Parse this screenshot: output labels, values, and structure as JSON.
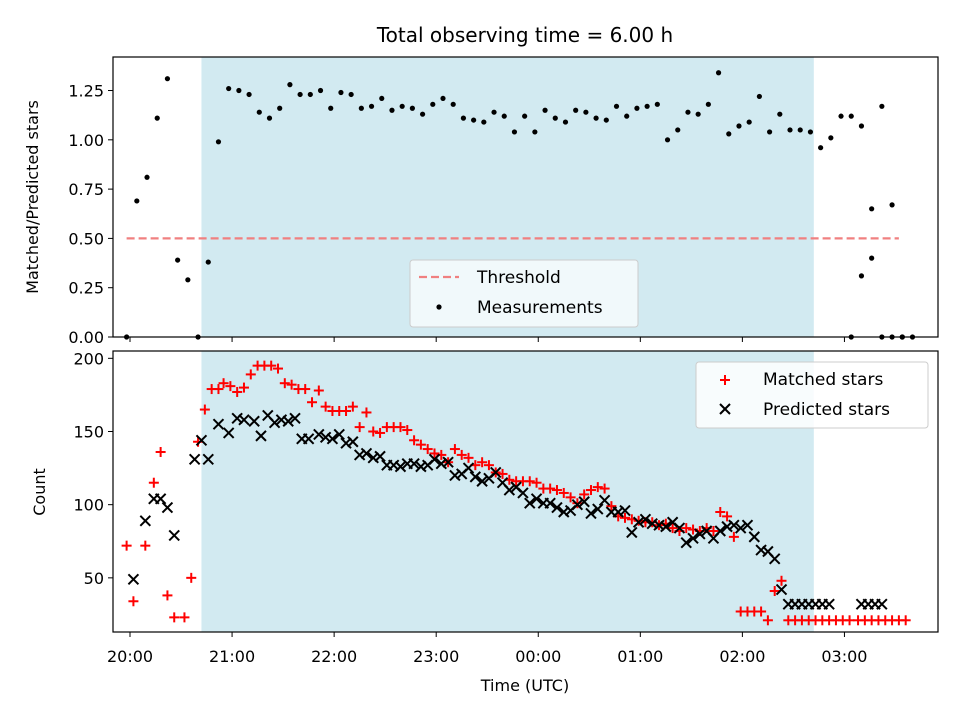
{
  "figure": {
    "title": "Total observing time = 6.00 h"
  },
  "colors": {
    "span": "#add8e6",
    "threshold": "#f08080",
    "matched": "#ff0000",
    "predicted": "#000000",
    "measurement": "#000000"
  },
  "chart_data": [
    {
      "type": "scatter",
      "title": "Total observing time = 6.00 h",
      "xlabel": "",
      "ylabel": "Matched/Predicted stars",
      "xlim": [
        "19:50",
        "03:55"
      ],
      "ylim": [
        0,
        1.42
      ],
      "yticks": [
        0.0,
        0.25,
        0.5,
        0.75,
        1.0,
        1.25
      ],
      "ytick_labels": [
        "0.00",
        "0.25",
        "0.50",
        "0.75",
        "1.00",
        "1.25"
      ],
      "shaded_span": [
        "20:42",
        "02:42"
      ],
      "legend": {
        "placement": "lower center",
        "entries": [
          "Threshold",
          "Measurements"
        ]
      },
      "threshold": {
        "name": "Threshold",
        "y": 0.5,
        "x_from": "19:58",
        "x_to": "03:32",
        "style": "dashed"
      },
      "series": [
        {
          "name": "Measurements",
          "x": [
            "19:58",
            "20:04",
            "20:10",
            "20:16",
            "20:22",
            "20:28",
            "20:34",
            "20:40",
            "20:46",
            "20:52",
            "20:58",
            "21:04",
            "21:10",
            "21:16",
            "21:22",
            "21:28",
            "21:34",
            "21:40",
            "21:46",
            "21:52",
            "21:58",
            "22:04",
            "22:10",
            "22:16",
            "22:22",
            "22:28",
            "22:34",
            "22:40",
            "22:46",
            "22:52",
            "22:58",
            "23:04",
            "23:10",
            "23:16",
            "23:22",
            "23:28",
            "23:34",
            "23:40",
            "23:46",
            "23:52",
            "23:58",
            "00:04",
            "00:10",
            "00:16",
            "00:22",
            "00:28",
            "00:34",
            "00:40",
            "00:46",
            "00:52",
            "00:58",
            "01:04",
            "01:10",
            "01:16",
            "01:22",
            "01:28",
            "01:34",
            "01:40",
            "01:46",
            "01:52",
            "01:58",
            "02:04",
            "02:10",
            "02:16",
            "02:22",
            "02:28",
            "02:34",
            "02:40",
            "02:46",
            "02:52",
            "02:58",
            "03:04",
            "03:10",
            "03:16",
            "03:22",
            "03:28",
            "03:34"
          ],
          "y": [
            0.0,
            0.69,
            0.81,
            1.11,
            1.31,
            0.39,
            0.29,
            0.0,
            0.38,
            0.99,
            1.26,
            1.25,
            1.23,
            1.14,
            1.11,
            1.16,
            1.28,
            1.23,
            1.23,
            1.25,
            1.16,
            1.24,
            1.23,
            1.16,
            1.17,
            1.21,
            1.15,
            1.17,
            1.16,
            1.13,
            1.18,
            1.21,
            1.18,
            1.11,
            1.1,
            1.09,
            1.14,
            1.12,
            1.04,
            1.12,
            1.04,
            1.15,
            1.11,
            1.09,
            1.15,
            1.14,
            1.11,
            1.1,
            1.17,
            1.12,
            1.16,
            1.17,
            1.18,
            1.0,
            1.05,
            1.14,
            1.13,
            1.18,
            1.34,
            1.03,
            1.07,
            1.09,
            1.22,
            1.04,
            1.13,
            1.05,
            1.05,
            1.04,
            0.96,
            1.01,
            1.12,
            1.12,
            1.07,
            0.4,
            0.0,
            0.0,
            0.0
          ]
        },
        {
          "name": "Measurements",
          "x": [
            "03:04",
            "03:10",
            "03:16",
            "03:22",
            "03:28",
            "03:34",
            "03:40"
          ],
          "y": [
            0.0,
            0.31,
            0.65,
            1.17,
            0.67,
            0.0,
            0.0
          ]
        }
      ]
    },
    {
      "type": "scatter",
      "title": "",
      "xlabel": "Time (UTC)",
      "ylabel": "Count",
      "xlim": [
        "19:50",
        "03:55"
      ],
      "ylim": [
        13,
        205
      ],
      "yticks": [
        50,
        100,
        150,
        200
      ],
      "ytick_labels": [
        "50",
        "100",
        "150",
        "200"
      ],
      "xtick_labels": [
        "20:00",
        "21:00",
        "22:00",
        "23:00",
        "00:00",
        "01:00",
        "02:00",
        "03:00"
      ],
      "shaded_span": [
        "20:42",
        "02:42"
      ],
      "legend": {
        "placement": "upper right",
        "entries": [
          "Matched stars",
          "Predicted stars"
        ]
      },
      "series": [
        {
          "name": "Matched stars",
          "marker": "+",
          "x": [
            "19:58",
            "20:02",
            "20:09",
            "20:14",
            "20:18",
            "20:22",
            "20:26",
            "20:32",
            "20:36",
            "20:40",
            "20:44",
            "20:48",
            "20:52",
            "20:55",
            "20:59",
            "21:03",
            "21:07",
            "21:11",
            "21:15",
            "21:19",
            "21:23",
            "21:27",
            "21:31",
            "21:35",
            "21:39",
            "21:43",
            "21:47",
            "21:51",
            "21:55",
            "21:59",
            "22:03",
            "22:07",
            "22:11",
            "22:15",
            "22:19",
            "22:23",
            "22:27",
            "22:31",
            "22:35",
            "22:39",
            "22:43",
            "22:47",
            "22:51",
            "22:55",
            "22:59",
            "23:03",
            "23:07",
            "23:11",
            "23:15",
            "23:19",
            "23:23",
            "23:27",
            "23:31",
            "23:35",
            "23:39",
            "23:43",
            "23:47",
            "23:51",
            "23:55",
            "23:59",
            "00:03",
            "00:07",
            "00:11",
            "00:15",
            "00:19",
            "00:23",
            "00:27",
            "00:31",
            "00:35",
            "00:39",
            "00:43",
            "00:47",
            "00:51",
            "00:55",
            "00:59",
            "01:03",
            "01:07",
            "01:11",
            "01:15",
            "01:19",
            "01:23",
            "01:27",
            "01:31",
            "01:35",
            "01:39",
            "01:43",
            "01:47",
            "01:51",
            "01:55",
            "01:59",
            "02:03",
            "02:07",
            "02:11",
            "02:15",
            "02:19",
            "02:23",
            "02:27",
            "02:31",
            "02:35",
            "02:39",
            "02:43",
            "02:47",
            "02:51",
            "02:55",
            "02:59",
            "03:03",
            "03:08",
            "03:12",
            "03:16",
            "03:20",
            "03:24",
            "03:28",
            "03:32",
            "03:36"
          ],
          "y": [
            72,
            34,
            72,
            115,
            136,
            38,
            23,
            23,
            50,
            143,
            165,
            179,
            179,
            183,
            181,
            177,
            180,
            189,
            195,
            195,
            195,
            193,
            183,
            182,
            179,
            179,
            170,
            178,
            167,
            164,
            164,
            164,
            167,
            153,
            163,
            150,
            149,
            153,
            153,
            153,
            151,
            144,
            141,
            138,
            135,
            134,
            129,
            138,
            134,
            132,
            127,
            129,
            127,
            122,
            121,
            117,
            116,
            116,
            116,
            115,
            111,
            111,
            110,
            108,
            105,
            101,
            107,
            110,
            112,
            111,
            99,
            92,
            91,
            90,
            89,
            88,
            88,
            86,
            87,
            84,
            82,
            84,
            83,
            82,
            84,
            82,
            95,
            92,
            78,
            27,
            27,
            27,
            27,
            21,
            41,
            48,
            21,
            21,
            21,
            21,
            21,
            21,
            21,
            21,
            21,
            21,
            21,
            21,
            21,
            21,
            21,
            21,
            21,
            21
          ],
          "x_note": ""
        },
        {
          "name": "Predicted stars",
          "marker": "x",
          "x": [
            "20:02",
            "20:09",
            "20:14",
            "20:18",
            "20:22",
            "20:26",
            "20:38",
            "20:42",
            "20:46",
            "20:52",
            "20:58",
            "21:03",
            "21:07",
            "21:13",
            "21:17",
            "21:21",
            "21:25",
            "21:29",
            "21:33",
            "21:37",
            "21:41",
            "21:45",
            "21:51",
            "21:55",
            "21:59",
            "22:03",
            "22:07",
            "22:11",
            "22:15",
            "22:19",
            "22:23",
            "22:27",
            "22:31",
            "22:35",
            "22:39",
            "22:43",
            "22:47",
            "22:51",
            "22:55",
            "22:59",
            "23:03",
            "23:07",
            "23:11",
            "23:15",
            "23:19",
            "23:23",
            "23:27",
            "23:31",
            "23:35",
            "23:39",
            "23:43",
            "23:47",
            "23:51",
            "23:55",
            "23:59",
            "00:03",
            "00:07",
            "00:11",
            "00:15",
            "00:19",
            "00:23",
            "00:27",
            "00:31",
            "00:35",
            "00:39",
            "00:43",
            "00:47",
            "00:51",
            "00:55",
            "00:59",
            "01:03",
            "01:07",
            "01:11",
            "01:15",
            "01:19",
            "01:23",
            "01:27",
            "01:31",
            "01:35",
            "01:39",
            "01:43",
            "01:47",
            "01:51",
            "01:55",
            "01:59",
            "02:03",
            "02:07",
            "02:11",
            "02:15",
            "02:19",
            "02:23",
            "02:27",
            "02:31",
            "02:35",
            "02:39",
            "02:43",
            "02:47",
            "02:51",
            "03:10",
            "03:14",
            "03:18",
            "03:22"
          ],
          "y": [
            49,
            89,
            104,
            104,
            98,
            79,
            131,
            144,
            131,
            155,
            149,
            159,
            158,
            157,
            147,
            161,
            156,
            158,
            157,
            159,
            145,
            145,
            148,
            146,
            145,
            148,
            142,
            143,
            134,
            135,
            132,
            133,
            127,
            127,
            126,
            128,
            128,
            126,
            127,
            131,
            128,
            129,
            120,
            121,
            125,
            119,
            116,
            118,
            122,
            115,
            110,
            112,
            108,
            101,
            104,
            101,
            101,
            98,
            95,
            96,
            100,
            102,
            94,
            97,
            103,
            95,
            95,
            96,
            81,
            88,
            90,
            87,
            86,
            85,
            88,
            84,
            74,
            77,
            80,
            82,
            77,
            82,
            85,
            86,
            84,
            86,
            78,
            69,
            68,
            63,
            42,
            32,
            32,
            32,
            32,
            32,
            32,
            32,
            32,
            32,
            32,
            32
          ],
          "x_note": ""
        }
      ]
    }
  ],
  "legend_labels": {
    "threshold": "Threshold",
    "measurements": "Measurements",
    "matched": "Matched stars",
    "predicted": "Predicted stars"
  }
}
